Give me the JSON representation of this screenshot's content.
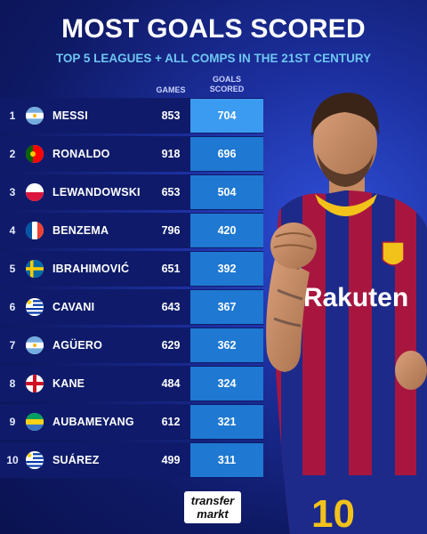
{
  "header": {
    "title": "MOST GOALS SCORED",
    "subtitle": "TOP 5 LEAGUES + ALL COMPS IN THE 21ST CENTURY"
  },
  "columns": {
    "games": "GAMES",
    "goals_line1": "GOALS",
    "goals_line2": "SCORED"
  },
  "players": [
    {
      "rank": "1",
      "name": "MESSI",
      "games": "853",
      "goals": "704",
      "flag": "argentina-flag"
    },
    {
      "rank": "2",
      "name": "RONALDO",
      "games": "918",
      "goals": "696",
      "flag": "portugal-flag"
    },
    {
      "rank": "3",
      "name": "LEWANDOWSKI",
      "games": "653",
      "goals": "504",
      "flag": "poland-flag"
    },
    {
      "rank": "4",
      "name": "BENZEMA",
      "games": "796",
      "goals": "420",
      "flag": "france-flag"
    },
    {
      "rank": "5",
      "name": "IBRAHIMOVIĆ",
      "games": "651",
      "goals": "392",
      "flag": "sweden-flag"
    },
    {
      "rank": "6",
      "name": "CAVANI",
      "games": "643",
      "goals": "367",
      "flag": "uruguay-flag"
    },
    {
      "rank": "7",
      "name": "AGÜERO",
      "games": "629",
      "goals": "362",
      "flag": "argentina-flag"
    },
    {
      "rank": "8",
      "name": "KANE",
      "games": "484",
      "goals": "324",
      "flag": "england-flag"
    },
    {
      "rank": "9",
      "name": "AUBAMEYANG",
      "games": "612",
      "goals": "321",
      "flag": "gabon-flag"
    },
    {
      "rank": "10",
      "name": "SUÁREZ",
      "games": "499",
      "goals": "311",
      "flag": "uruguay-flag"
    }
  ],
  "jersey": {
    "sponsor": "Rakuten",
    "number": "10"
  },
  "logo": {
    "line1": "transfer",
    "line2": "markt"
  },
  "colors": {
    "background": "#1c2f9e",
    "row": "#0f1b6a",
    "goals_cell": "#1f78d1",
    "subtitle": "#6fc6f2"
  }
}
